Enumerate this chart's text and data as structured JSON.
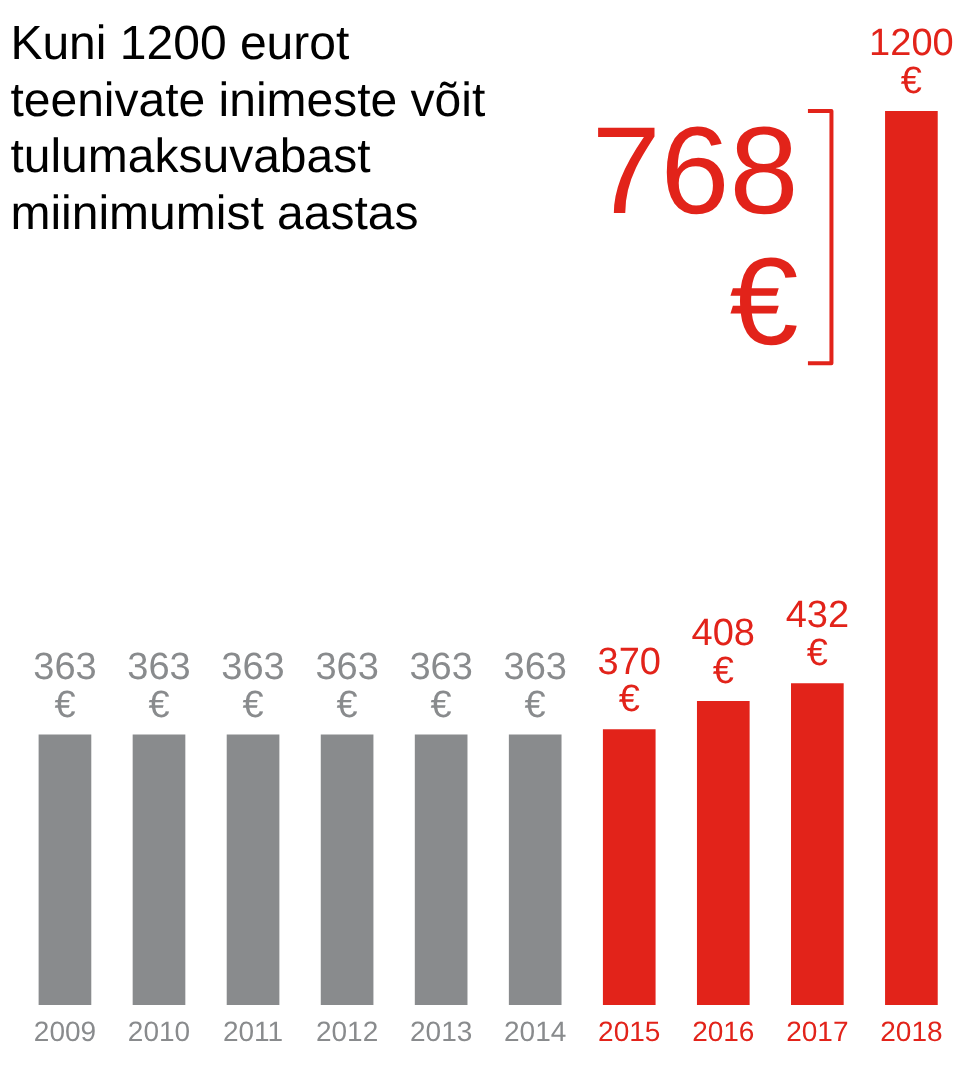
{
  "chart_data": {
    "type": "bar",
    "title": "Kuni 1200 eurot teenivate inimeste võit tulumaksuvabast miinimumist aastas",
    "categories": [
      "2009",
      "2010",
      "2011",
      "2012",
      "2013",
      "2014",
      "2015",
      "2016",
      "2017",
      "2018"
    ],
    "values": [
      363,
      363,
      363,
      363,
      363,
      363,
      370,
      408,
      432,
      1200
    ],
    "colors": [
      "#898b8d",
      "#898b8d",
      "#898b8d",
      "#898b8d",
      "#898b8d",
      "#898b8d",
      "#e2231a",
      "#e2231a",
      "#e2231a",
      "#e2231a"
    ],
    "value_labels": [
      "363 €",
      "363 €",
      "363 €",
      "363 €",
      "363 €",
      "363 €",
      "370 €",
      "408 €",
      "432 €",
      "1200 €"
    ],
    "annotations": [
      "768 €"
    ],
    "grid": false
  }
}
